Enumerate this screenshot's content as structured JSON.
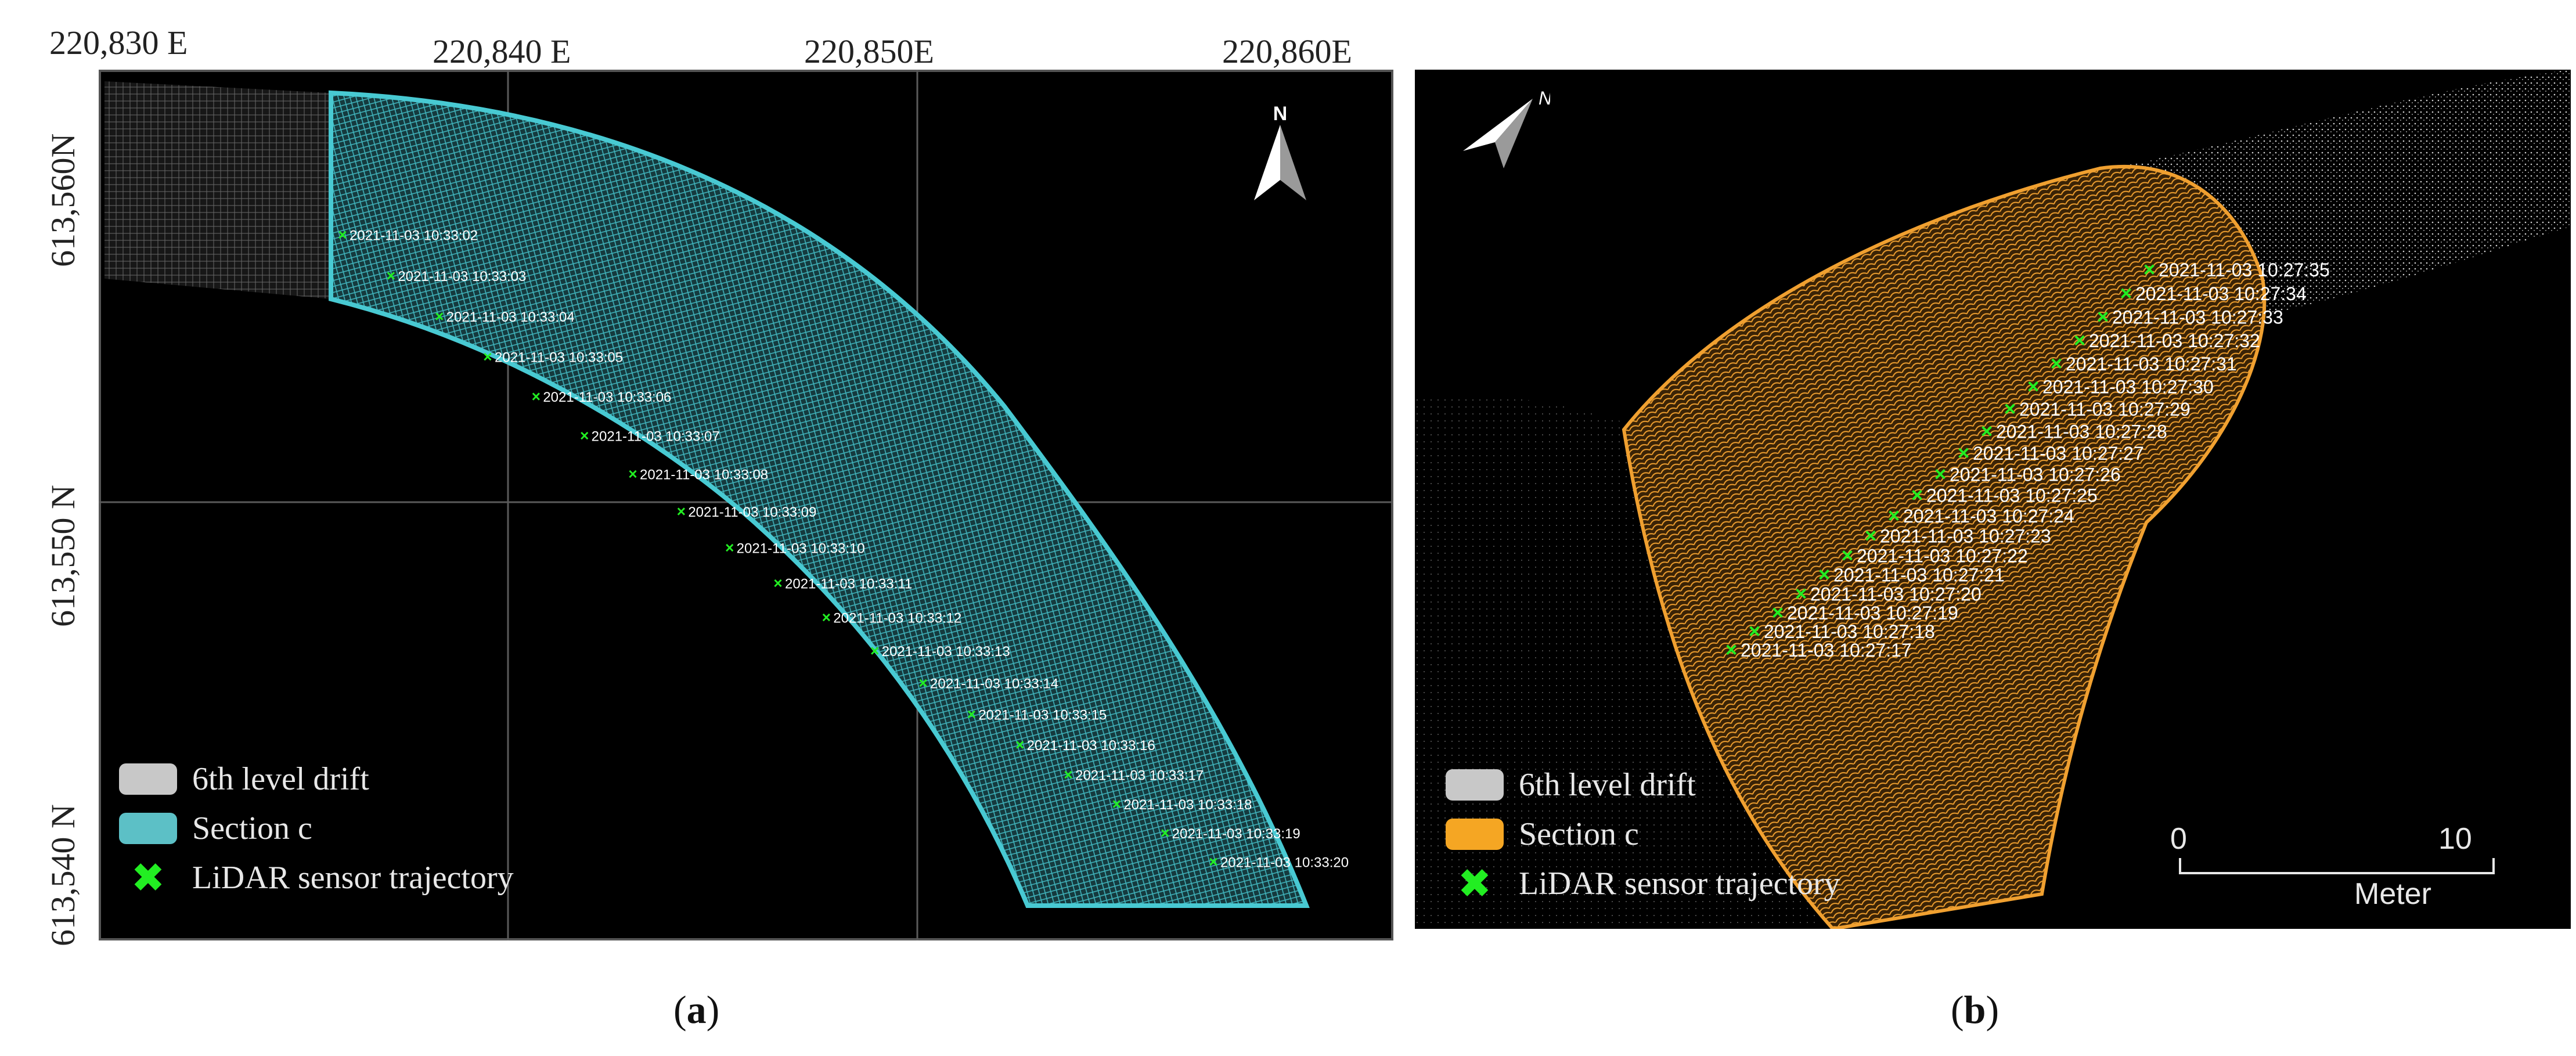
{
  "panel_a": {
    "x_ticks": [
      "220,830 E",
      "220,840 E",
      "220,850E",
      "220,860E"
    ],
    "y_ticks": [
      "613,560N",
      "613,550 N",
      "613,540 N"
    ],
    "trajectory_labels": [
      "2021-11-03 10:33:02",
      "2021-11-03 10:33:03",
      "2021-11-03 10:33:04",
      "2021-11-03 10:33:05",
      "2021-11-03 10:33:06",
      "2021-11-03 10:33:07",
      "2021-11-03 10:33:08",
      "2021-11-03 10:33:09",
      "2021-11-03 10:33:10",
      "2021-11-03 10:33:11",
      "2021-11-03 10:33:12",
      "2021-11-03 10:33:13",
      "2021-11-03 10:33:14",
      "2021-11-03 10:33:15",
      "2021-11-03 10:33:16",
      "2021-11-03 10:33:17",
      "2021-11-03 10:33:18",
      "2021-11-03 10:33:19",
      "2021-11-03 10:33:20"
    ],
    "legend": [
      {
        "label": "6th level drift",
        "color": "#c8c8c8",
        "kind": "swatch"
      },
      {
        "label": "Section c",
        "color": "#5cc0c6",
        "kind": "swatch"
      },
      {
        "label": "LiDAR sensor trajectory",
        "color": "#22ee22",
        "kind": "cross"
      }
    ],
    "north_label": "N",
    "caption": "a",
    "colors": {
      "section": "#48c9d2",
      "drift": "#b8b8b8",
      "trajectory": "#22ee22"
    }
  },
  "panel_b": {
    "trajectory_labels": [
      "2021-11-03 10:27:17",
      "2021-11-03 10:27:18",
      "2021-11-03 10:27:19",
      "2021-11-03 10:27:20",
      "2021-11-03 10:27:21",
      "2021-11-03 10:27:22",
      "2021-11-03 10:27:23",
      "2021-11-03 10:27:24",
      "2021-11-03 10:27:25",
      "2021-11-03 10:27:26",
      "2021-11-03 10:27:27",
      "2021-11-03 10:27:28",
      "2021-11-03 10:27:29",
      "2021-11-03 10:27:30",
      "2021-11-03 10:27:31",
      "2021-11-03 10:27:32",
      "2021-11-03 10:27:33",
      "2021-11-03 10:27:34",
      "2021-11-03 10:27:35"
    ],
    "legend": [
      {
        "label": "6th level drift",
        "color": "#c8c8c8",
        "kind": "swatch"
      },
      {
        "label": "Section c",
        "color": "#f5a623",
        "kind": "swatch"
      },
      {
        "label": "LiDAR sensor trajectory",
        "color": "#22ee22",
        "kind": "cross"
      }
    ],
    "north_label": "N",
    "scale_bar": {
      "start": "0",
      "end": "10",
      "unit": "Meter"
    },
    "caption": "b",
    "colors": {
      "section": "#f0a030",
      "drift": "#d0d0d0",
      "trajectory": "#22ee22"
    }
  }
}
